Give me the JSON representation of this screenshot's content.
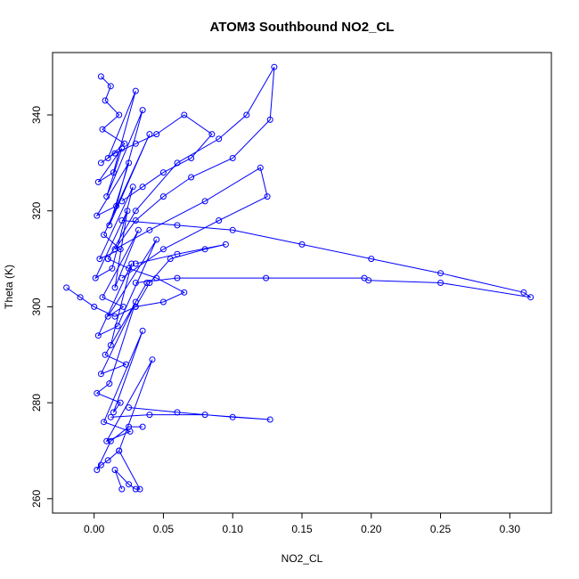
{
  "chart_data": {
    "type": "line",
    "title": "ATOM3 Southbound NO2_CL",
    "xlabel": "NO2_CL",
    "ylabel": "Theta (K)",
    "xlim": [
      -0.03,
      0.33
    ],
    "ylim": [
      257,
      353
    ],
    "x_ticks": [
      0.0,
      0.05,
      0.1,
      0.15,
      0.2,
      0.25,
      0.3
    ],
    "x_tick_labels": [
      "0.00",
      "0.05",
      "0.10",
      "0.15",
      "0.20",
      "0.25",
      "0.30"
    ],
    "y_ticks": [
      260,
      280,
      300,
      320,
      340
    ],
    "y_tick_labels": [
      "260",
      "280",
      "300",
      "320",
      "340"
    ],
    "grid": false,
    "legend": "none",
    "color": "#0000ff",
    "series": [
      {
        "x": [
          0.005,
          0.012,
          0.008,
          0.018,
          0.006,
          0.022,
          0.01,
          0.03,
          0.014,
          0.003,
          0.02,
          0.009,
          0.035,
          0.016,
          0.002,
          0.025,
          0.011,
          0.04,
          0.007,
          0.019,
          0.004,
          0.028,
          0.013,
          0.001,
          0.024,
          0.015,
          0.032,
          0.006,
          0.021,
          0.01,
          0.045,
          0.017,
          0.003,
          0.027,
          0.012,
          0.038,
          0.008,
          0.023,
          0.005,
          0.03,
          0.011,
          0.002,
          0.019,
          0.014,
          0.035,
          0.007,
          0.026,
          0.009,
          0.042,
          0.018
        ],
        "y": [
          348,
          346,
          343,
          340,
          337,
          334,
          331,
          345,
          328,
          326,
          333,
          323,
          341,
          321,
          319,
          330,
          317,
          336,
          315,
          312,
          310,
          325,
          308,
          306,
          320,
          304,
          316,
          302,
          300,
          298,
          314,
          296,
          294,
          309,
          292,
          305,
          290,
          288,
          286,
          301,
          284,
          282,
          280,
          278,
          295,
          276,
          274,
          272,
          289,
          270
        ]
      },
      {
        "x": [
          0.01,
          0.03,
          0.06,
          0.09,
          0.11,
          0.13,
          0.127,
          0.1,
          0.07,
          0.05,
          0.03,
          0.015,
          0.04,
          0.08,
          0.12,
          0.125,
          0.09,
          0.05,
          0.02
        ],
        "y": [
          310,
          320,
          330,
          335,
          340,
          350,
          339,
          331,
          327,
          323,
          318,
          312,
          316,
          322,
          329,
          323,
          318,
          312,
          306
        ]
      },
      {
        "x": [
          0.02,
          0.06,
          0.1,
          0.15,
          0.2,
          0.25,
          0.31,
          0.315,
          0.25,
          0.198,
          0.195,
          0.124,
          0.06,
          0.03
        ],
        "y": [
          318,
          317,
          316,
          313,
          310,
          307,
          303,
          302,
          305,
          305.5,
          306,
          306,
          306,
          305
        ]
      },
      {
        "x": [
          0.012,
          0.04,
          0.08,
          0.127,
          0.1,
          0.06,
          0.025
        ],
        "y": [
          277,
          277.5,
          277.5,
          276.5,
          277,
          278,
          279
        ]
      },
      {
        "x": [
          -0.02,
          -0.01,
          0.0,
          0.015,
          0.03,
          0.05,
          0.065,
          0.045,
          0.025,
          0.01
        ],
        "y": [
          304,
          302,
          300,
          298,
          300,
          301,
          303,
          306,
          308,
          310
        ]
      },
      {
        "x": [
          0.02,
          0.015,
          0.025,
          0.03,
          0.033,
          0.018,
          0.01,
          0.005,
          0.002,
          0.012,
          0.025,
          0.035
        ],
        "y": [
          262,
          266,
          263,
          262,
          262,
          270,
          268,
          267,
          266,
          272,
          275,
          275
        ]
      },
      {
        "x": [
          0.03,
          0.04,
          0.055,
          0.08,
          0.095,
          0.06,
          0.03
        ],
        "y": [
          300,
          305,
          310,
          312,
          313,
          311,
          309
        ]
      },
      {
        "x": [
          0.005,
          0.015,
          0.03,
          0.045,
          0.065,
          0.085,
          0.07,
          0.05,
          0.035,
          0.02
        ],
        "y": [
          330,
          332,
          334,
          336,
          340,
          336,
          331,
          328,
          325,
          322
        ]
      }
    ]
  }
}
